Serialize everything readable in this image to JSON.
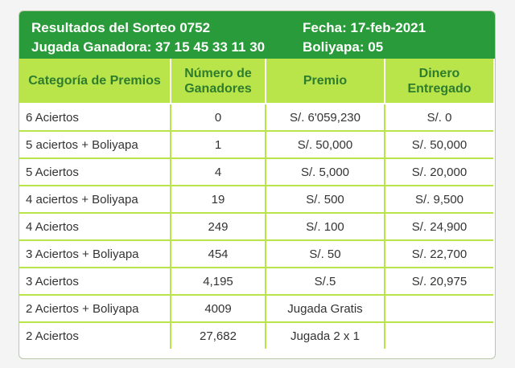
{
  "header": {
    "sorteo": "Resultados del Sorteo 0752",
    "jugada": "Jugada Ganadora: 37 15 45 33 11 30",
    "fecha": "Fecha: 17-feb-2021",
    "boliyapa": "Boliyapa: 05"
  },
  "columns": [
    "Categoría de Premios",
    "Número de Ganadores",
    "Premio",
    "Dinero Entregado"
  ],
  "rows": [
    {
      "categoria": "6 Aciertos",
      "ganadores": "0",
      "premio": "S/. 6'059,230",
      "dinero": "S/. 0"
    },
    {
      "categoria": "5 aciertos + Boliyapa",
      "ganadores": "1",
      "premio": "S/. 50,000",
      "dinero": "S/. 50,000"
    },
    {
      "categoria": "5 Aciertos",
      "ganadores": "4",
      "premio": "S/. 5,000",
      "dinero": "S/. 20,000"
    },
    {
      "categoria": "4 aciertos + Boliyapa",
      "ganadores": "19",
      "premio": "S/. 500",
      "dinero": "S/. 9,500"
    },
    {
      "categoria": "4 Aciertos",
      "ganadores": "249",
      "premio": "S/. 100",
      "dinero": "S/. 24,900"
    },
    {
      "categoria": "3 Aciertos + Boliyapa",
      "ganadores": "454",
      "premio": "S/. 50",
      "dinero": "S/. 22,700"
    },
    {
      "categoria": "3 Aciertos",
      "ganadores": "4,195",
      "premio": "S/.5",
      "dinero": "S/. 20,975"
    },
    {
      "categoria": "2 Aciertos + Boliyapa",
      "ganadores": "4009",
      "premio": "Jugada Gratis",
      "dinero": ""
    },
    {
      "categoria": "2 Aciertos",
      "ganadores": "27,682",
      "premio": "Jugada 2 x 1",
      "dinero": ""
    }
  ],
  "colors": {
    "banner": "#2a9b3a",
    "header_bg": "#b9e44a",
    "header_text": "#2e7d2e"
  }
}
